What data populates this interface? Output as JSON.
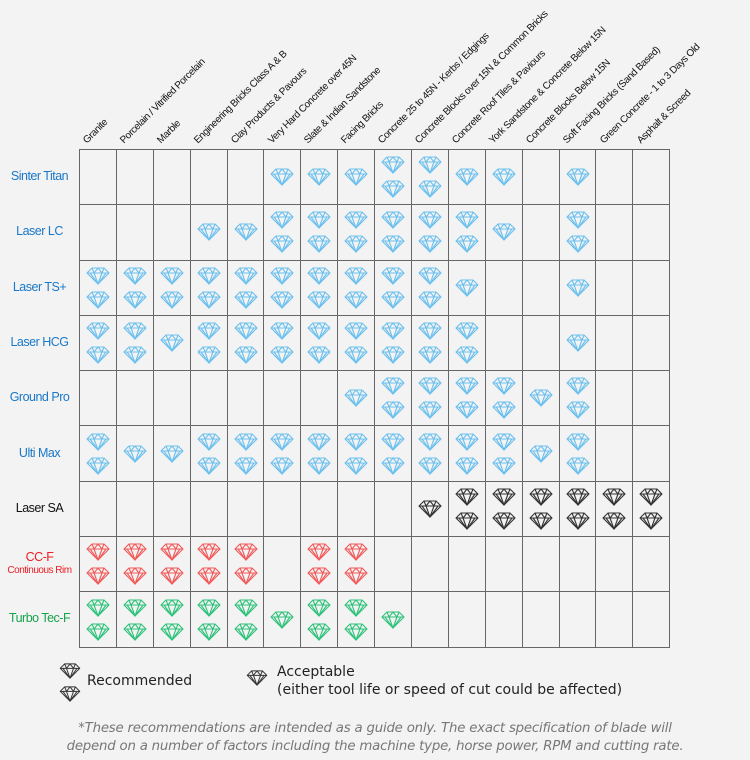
{
  "columns": [
    "Granite",
    "Porcelain / Vitrified Porcelain",
    "Marble",
    "Engineering Bricks Class A & B",
    "Clay Products & Pavours",
    "Very Hard Concrete over 45N",
    "Slate & Indian Sandstone",
    "Facing Bricks",
    "Concrete 25 to 45N - Kerbs / Edgings",
    "Concrete Blocks over 15N & Common Bricks",
    "Concrete Roof Tiles & Paviours",
    "York Sandstone & Concrete Below 15N",
    "Concrete Blocks Below 15N",
    "Soft Facing Bricks (Sand Based)",
    "Green Concrete - 1 to 3 Days Old",
    "Asphalt & Screed"
  ],
  "rows": [
    {
      "label": "Sinter Titan",
      "sub": "",
      "color": "#1a78c8",
      "diamond": "#6cc0ee",
      "ratings": [
        0,
        0,
        0,
        0,
        0,
        1,
        1,
        1,
        2,
        2,
        1,
        1,
        0,
        1,
        0,
        0
      ]
    },
    {
      "label": "Laser LC",
      "sub": "",
      "color": "#1a78c8",
      "diamond": "#6cc0ee",
      "ratings": [
        0,
        0,
        0,
        1,
        1,
        2,
        2,
        2,
        2,
        2,
        2,
        1,
        0,
        2,
        0,
        0
      ]
    },
    {
      "label": "Laser TS+",
      "sub": "",
      "color": "#1a78c8",
      "diamond": "#6cc0ee",
      "ratings": [
        2,
        2,
        2,
        2,
        2,
        2,
        2,
        2,
        2,
        2,
        1,
        0,
        0,
        1,
        0,
        0
      ]
    },
    {
      "label": "Laser HCG",
      "sub": "",
      "color": "#1a78c8",
      "diamond": "#6cc0ee",
      "ratings": [
        2,
        2,
        1,
        2,
        2,
        2,
        2,
        2,
        2,
        2,
        2,
        0,
        0,
        1,
        0,
        0
      ]
    },
    {
      "label": "Ground Pro",
      "sub": "",
      "color": "#1a78c8",
      "diamond": "#6cc0ee",
      "ratings": [
        0,
        0,
        0,
        0,
        0,
        0,
        0,
        1,
        2,
        2,
        2,
        2,
        1,
        2,
        0,
        0
      ]
    },
    {
      "label": "Ulti Max",
      "sub": "",
      "color": "#1a78c8",
      "diamond": "#6cc0ee",
      "ratings": [
        2,
        1,
        1,
        2,
        2,
        2,
        2,
        2,
        2,
        2,
        2,
        2,
        1,
        2,
        0,
        0
      ]
    },
    {
      "label": "Laser SA",
      "sub": "",
      "color": "#111111",
      "diamond": "#333333",
      "ratings": [
        0,
        0,
        0,
        0,
        0,
        0,
        0,
        0,
        0,
        1,
        2,
        2,
        2,
        2,
        2,
        2
      ]
    },
    {
      "label": "CC-F",
      "sub": "Continuous Rim",
      "color": "#ee1c24",
      "diamond": "#f25a5a",
      "ratings": [
        2,
        2,
        2,
        2,
        2,
        0,
        2,
        2,
        0,
        0,
        0,
        0,
        0,
        0,
        0,
        0
      ]
    },
    {
      "label": "Turbo Tec-F",
      "sub": "",
      "color": "#16a34a",
      "diamond": "#2fc27a",
      "ratings": [
        2,
        2,
        2,
        2,
        2,
        1,
        2,
        2,
        1,
        0,
        0,
        0,
        0,
        0,
        0,
        0
      ]
    }
  ],
  "legend": {
    "recommended": "Recommended",
    "acceptable": "Acceptable",
    "acceptable_note": "(either tool life or speed of cut could be affected)",
    "icon_color": "#333333"
  },
  "footnote": {
    "line1": "*These recommendations are intended as a guide only. The exact specification of blade will",
    "line2": "depend on a number of factors including the machine type, horse power, RPM and cutting rate."
  }
}
